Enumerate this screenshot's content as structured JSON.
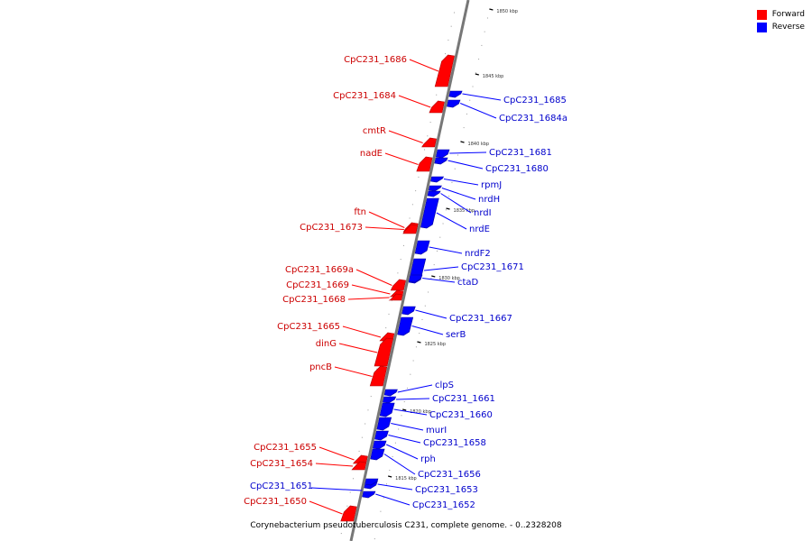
{
  "legend": {
    "forward_label": "Forward",
    "reverse_label": "Reverse",
    "forward_color": "#ff0000",
    "reverse_color": "#0000ff"
  },
  "caption": "Corynebacterium pseudotuberculosis C231, complete genome. - 0..2328208",
  "kbp_marks": [
    "1850 kbp",
    "1845 kbp",
    "1840 kbp",
    "1835 kbp",
    "1830 kbp",
    "1825 kbp",
    "1820 kbp",
    "1815 kbp"
  ],
  "forward_genes": [
    "CpC231_1686",
    "CpC231_1684",
    "cmtR",
    "nadE",
    "ftn",
    "CpC231_1673",
    "CpC231_1669a",
    "CpC231_1669",
    "CpC231_1668",
    "CpC231_1665",
    "dinG",
    "pncB",
    "CpC231_1655",
    "CpC231_1654",
    "CpC231_1650"
  ],
  "reverse_genes": [
    "CpC231_1685",
    "CpC231_1684a",
    "CpC231_1681",
    "CpC231_1680",
    "rpmJ",
    "nrdH",
    "nrdI",
    "nrdE",
    "nrdF2",
    "CpC231_1671",
    "ctaD",
    "CpC231_1667",
    "serB",
    "clpS",
    "CpC231_1661",
    "CpC231_1660",
    "murI",
    "CpC231_1658",
    "rph",
    "CpC231_1656",
    "CpC231_1653",
    "CpC231_1652",
    "CpC231_1651"
  ]
}
